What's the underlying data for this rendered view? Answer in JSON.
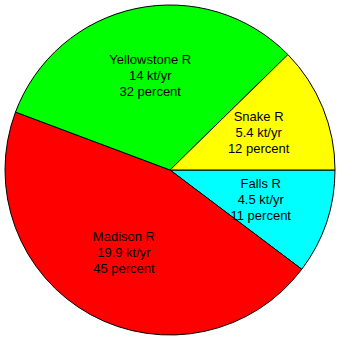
{
  "chart_data": {
    "type": "pie",
    "categories": [
      "Falls R",
      "Madison R",
      "Yellowstone R",
      "Snake R"
    ],
    "values": [
      4.5,
      19.9,
      14,
      5.4
    ],
    "value_labels": [
      "4.5 kt/yr",
      "19.9 kt/yr",
      "14 kt/yr",
      "5.4 kt/yr"
    ],
    "percentages": [
      11,
      45,
      32,
      12
    ],
    "percentage_labels": [
      "11 percent",
      "45 percent",
      "32 percent",
      "12 percent"
    ],
    "colors": [
      "#00ffff",
      "#ff0000",
      "#00ff00",
      "#ffff00"
    ],
    "data_labels": true
  }
}
